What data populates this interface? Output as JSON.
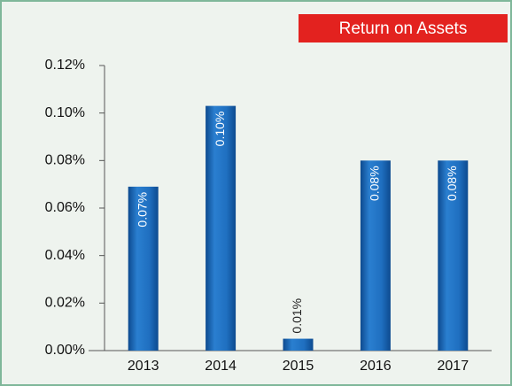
{
  "chart_data": {
    "type": "bar",
    "title": "Return on Assets",
    "categories": [
      "2013",
      "2014",
      "2015",
      "2016",
      "2017"
    ],
    "values": [
      0.069,
      0.103,
      0.005,
      0.08,
      0.08
    ],
    "value_labels": [
      "0.07%",
      "0.10%",
      "0.01%",
      "0.08%",
      "0.08%"
    ],
    "color": "#1f6fc0",
    "ylim": [
      0,
      0.12
    ],
    "yticks": [
      {
        "value": 0,
        "label": "0.00%"
      },
      {
        "value": 0.02,
        "label": "0.02%"
      },
      {
        "value": 0.04,
        "label": "0.04%"
      },
      {
        "value": 0.06,
        "label": "0.06%"
      },
      {
        "value": 0.08,
        "label": "0.08%"
      },
      {
        "value": 0.1,
        "label": "0.10%"
      },
      {
        "value": 0.12,
        "label": "0.12%"
      }
    ]
  }
}
